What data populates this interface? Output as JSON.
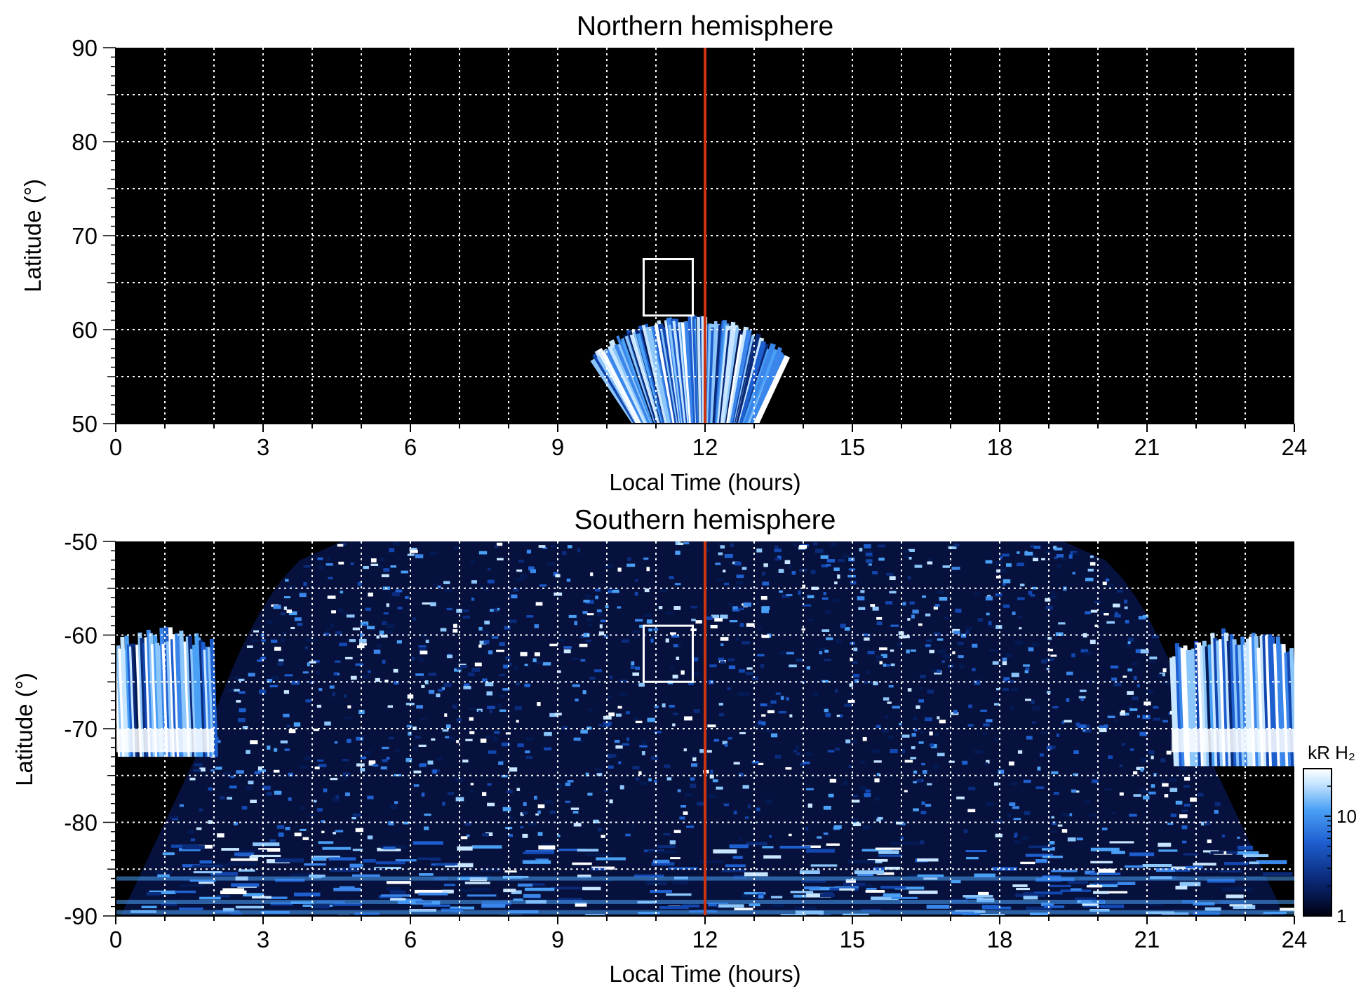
{
  "chart_data": [
    {
      "type": "heatmap",
      "title": "Northern hemisphere",
      "xlabel": "Local Time (hours)",
      "ylabel": "Latitude (°)",
      "xlim": [
        0,
        24
      ],
      "ylim": [
        50,
        90
      ],
      "xticks": [
        "0",
        "3",
        "6",
        "9",
        "12",
        "15",
        "18",
        "21",
        "24"
      ],
      "yticks": [
        "50",
        "60",
        "70",
        "80",
        "90"
      ],
      "grid": true,
      "background": "#000000",
      "marker_line": {
        "x": 12,
        "color": "#cc3311"
      },
      "highlight_box": {
        "x": [
          10.75,
          11.75
        ],
        "y": [
          61.5,
          67.5
        ],
        "color": "#ffffff"
      },
      "emission_region": {
        "lt_range": [
          9.7,
          13.7
        ],
        "lat_range": [
          50,
          61
        ],
        "shape": "fan"
      }
    },
    {
      "type": "heatmap",
      "title": "Southern hemisphere",
      "xlabel": "Local Time (hours)",
      "ylabel": "Latitude (°)",
      "xlim": [
        0,
        24
      ],
      "ylim": [
        -90,
        -50
      ],
      "xticks": [
        "0",
        "3",
        "6",
        "9",
        "12",
        "15",
        "18",
        "21",
        "24"
      ],
      "yticks": [
        "-90",
        "-80",
        "-70",
        "-60",
        "-50"
      ],
      "grid": true,
      "background": "#000000",
      "marker_line": {
        "x": 12,
        "color": "#cc3311"
      },
      "highlight_box": {
        "x": [
          10.75,
          11.75
        ],
        "y": [
          -65,
          -59
        ],
        "color": "#ffffff"
      },
      "coverage": {
        "lt_at_minus50": [
          4.6,
          19.3
        ],
        "lt_at_minus70": [
          1.9,
          22.0
        ]
      },
      "auroral_patches": [
        {
          "lt_range": [
            0,
            2.0
          ],
          "lat_range": [
            -73,
            -59
          ]
        },
        {
          "lt_range": [
            21.5,
            24
          ],
          "lat_range": [
            -74,
            -59
          ]
        }
      ]
    }
  ],
  "colorbar": {
    "label": "kR H₂",
    "scale": "log",
    "tick_labels": [
      "1",
      "10"
    ],
    "range": [
      1,
      30
    ],
    "colors": [
      "#000010",
      "#0a2a7a",
      "#1e5fd0",
      "#4aa0f5",
      "#c8e6ff",
      "#ffffff"
    ]
  }
}
